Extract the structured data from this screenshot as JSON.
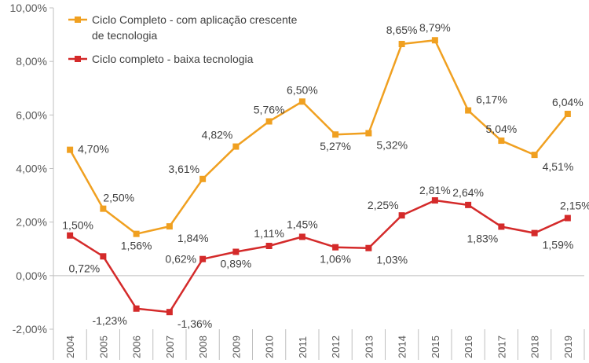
{
  "chart_data": {
    "type": "line",
    "title": "",
    "xlabel": "",
    "ylabel": "",
    "ylim": [
      -2,
      10
    ],
    "y_ticks": [
      "10,00%",
      "8,00%",
      "6,00%",
      "4,00%",
      "2,00%",
      "0,00%",
      "-2,00%"
    ],
    "y_tick_values": [
      10,
      8,
      6,
      4,
      2,
      0,
      -2
    ],
    "categories": [
      "2004",
      "2005",
      "2006",
      "2007",
      "2008",
      "2009",
      "2010",
      "2011",
      "2012",
      "2013",
      "2014",
      "2015",
      "2016",
      "2017",
      "2018",
      "2019"
    ],
    "grid": false,
    "legend_position": "top-left",
    "series": [
      {
        "name": "Ciclo Completo - com aplicação crescente de tecnologia",
        "legend_lines": [
          "Ciclo Completo - com aplicação crescente",
          "de tecnologia"
        ],
        "color": "#F0A020",
        "marker": "square",
        "values": [
          4.7,
          2.5,
          1.56,
          1.84,
          3.61,
          4.82,
          5.76,
          6.5,
          5.27,
          5.32,
          8.65,
          8.79,
          6.17,
          5.04,
          4.51,
          6.04
        ],
        "labels": [
          "4,70%",
          "2,50%",
          "1,56%",
          "1,84%",
          "3,61%",
          "4,82%",
          "5,76%",
          "6,50%",
          "5,27%",
          "5,32%",
          "8,65%",
          "8,79%",
          "6,17%",
          "5,04%",
          "4,51%",
          "6,04%"
        ]
      },
      {
        "name": "Ciclo completo - baixa tecnologia",
        "legend_lines": [
          "Ciclo completo - baixa tecnologia"
        ],
        "color": "#D42A2A",
        "marker": "square",
        "values": [
          1.5,
          0.72,
          -1.23,
          -1.36,
          0.62,
          0.89,
          1.11,
          1.45,
          1.06,
          1.03,
          2.25,
          2.81,
          2.64,
          1.83,
          1.59,
          2.15
        ],
        "labels": [
          "1,50%",
          "0,72%",
          "-1,23%",
          "-1,36%",
          "0,62%",
          "0,89%",
          "1,11%",
          "1,45%",
          "1,06%",
          "1,03%",
          "2,25%",
          "2,81%",
          "2,64%",
          "1,83%",
          "1,59%",
          "2,15%"
        ]
      }
    ]
  }
}
